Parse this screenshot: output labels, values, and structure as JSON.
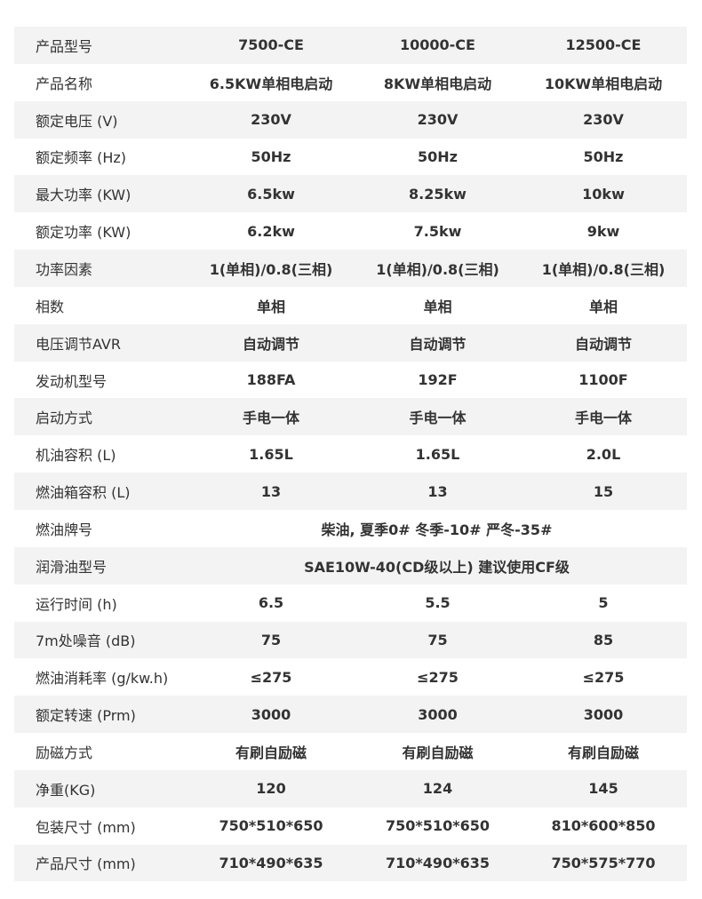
{
  "rows": [
    {
      "label": "产品型号",
      "values": [
        "7500-CE",
        "10000-CE",
        "12500-CE"
      ]
    },
    {
      "label": "产品名称",
      "values": [
        "6.5KW单相电启动",
        "8KW单相电启动",
        "10KW单相电启动"
      ]
    },
    {
      "label": "额定电压 (V)",
      "values": [
        "230V",
        "230V",
        "230V"
      ]
    },
    {
      "label": "额定频率 (Hz)",
      "values": [
        "50Hz",
        "50Hz",
        "50Hz"
      ]
    },
    {
      "label": "最大功率 (KW)",
      "values": [
        "6.5kw",
        "8.25kw",
        "10kw"
      ]
    },
    {
      "label": "额定功率 (KW)",
      "values": [
        "6.2kw",
        "7.5kw",
        "9kw"
      ]
    },
    {
      "label": "功率因素",
      "values": [
        "1(单相)/0.8(三相)",
        "1(单相)/0.8(三相)",
        "1(单相)/0.8(三相)"
      ]
    },
    {
      "label": "相数",
      "values": [
        "单相",
        "单相",
        "单相"
      ]
    },
    {
      "label": "电压调节AVR",
      "values": [
        "自动调节",
        "自动调节",
        "自动调节"
      ]
    },
    {
      "label": "发动机型号",
      "values": [
        "188FA",
        "192F",
        "1100F"
      ]
    },
    {
      "label": "启动方式",
      "values": [
        "手电一体",
        "手电一体",
        "手电一体"
      ]
    },
    {
      "label": "机油容积 (L)",
      "values": [
        "1.65L",
        "1.65L",
        "2.0L"
      ]
    },
    {
      "label": "燃油箱容积 (L)",
      "values": [
        "13",
        "13",
        "15"
      ]
    },
    {
      "label": "燃油牌号",
      "merged": "柴油, 夏季0# 冬季-10#  严冬-35#"
    },
    {
      "label": "润滑油型号",
      "merged": "SAE10W-40(CD级以上) 建议使用CF级"
    },
    {
      "label": "运行时间 (h)",
      "values": [
        "6.5",
        "5.5",
        "5"
      ]
    },
    {
      "label": "7m处噪音 (dB)",
      "values": [
        "75",
        "75",
        "85"
      ]
    },
    {
      "label": "燃油消耗率 (g/kw.h)",
      "values": [
        "≤275",
        "≤275",
        "≤275"
      ]
    },
    {
      "label": "额定转速 (Prm)",
      "values": [
        "3000",
        "3000",
        "3000"
      ]
    },
    {
      "label": "励磁方式",
      "values": [
        "有刷自励磁",
        "有刷自励磁",
        "有刷自励磁"
      ]
    },
    {
      "label": "净重(KG)",
      "values": [
        "120",
        "124",
        "145"
      ]
    },
    {
      "label": "包装尺寸 (mm)",
      "values": [
        "750*510*650",
        "750*510*650",
        "810*600*850"
      ]
    },
    {
      "label": "产品尺寸 (mm)",
      "values": [
        "710*490*635",
        "710*490*635",
        "750*575*770"
      ]
    }
  ]
}
